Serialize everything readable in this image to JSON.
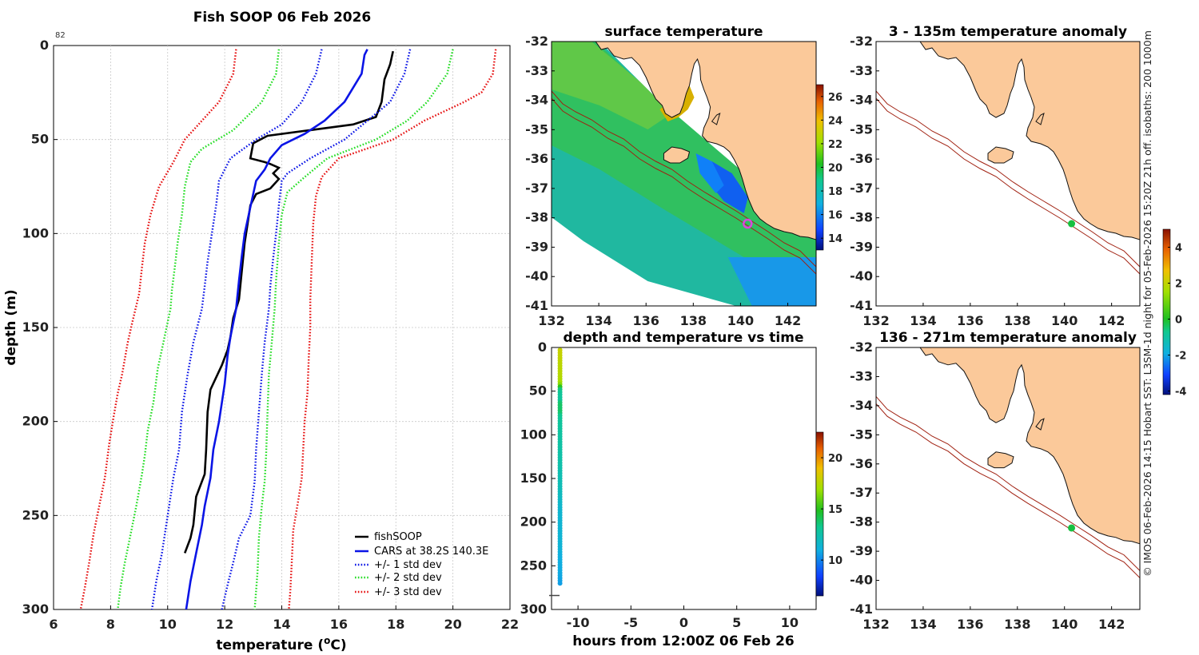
{
  "copyright_note": "© IMOS 06-Feb-2026 14:15 Hobart SST: L3SM-1d night for 05-Feb-2026 15:20Z 21h off. isobaths: 200  1000m",
  "colors": {
    "black": "#000000",
    "blue": "#0a14e6",
    "green": "#22dd22",
    "red": "#e61010",
    "land": "#fbc99a",
    "isobath": "#a02010",
    "station": "#18c040",
    "marker": "#dd44dd"
  },
  "chart_data": [
    {
      "id": "profile",
      "type": "line",
      "title": "Fish SOOP 06 Feb 2026",
      "xlabel": "temperature (°C)",
      "ylabel": "depth (m)",
      "xlim": [
        6,
        22
      ],
      "ylim": [
        0,
        300
      ],
      "x_ticks": [
        "6",
        "8",
        "10",
        "12",
        "14",
        "16",
        "18",
        "20",
        "22"
      ],
      "y_ticks": [
        "0",
        "50",
        "100",
        "150",
        "200",
        "250",
        "300"
      ],
      "corner_label": "82",
      "grid": true,
      "legend_position": "bottom-right",
      "series": [
        {
          "name": "fishSOOP",
          "style": "solid",
          "color_key": "black",
          "points": [
            [
              17.9,
              3
            ],
            [
              17.8,
              10
            ],
            [
              17.6,
              18
            ],
            [
              17.5,
              30
            ],
            [
              17.3,
              38
            ],
            [
              16.5,
              42
            ],
            [
              15.0,
              45
            ],
            [
              13.5,
              48
            ],
            [
              13.0,
              52
            ],
            [
              12.95,
              56
            ],
            [
              12.9,
              60
            ],
            [
              13.4,
              62
            ],
            [
              13.6,
              63
            ],
            [
              13.9,
              65
            ],
            [
              13.7,
              68
            ],
            [
              13.9,
              71
            ],
            [
              13.6,
              76
            ],
            [
              13.1,
              79
            ],
            [
              12.9,
              85
            ],
            [
              12.8,
              95
            ],
            [
              12.7,
              105
            ],
            [
              12.6,
              120
            ],
            [
              12.5,
              135
            ],
            [
              12.3,
              145
            ],
            [
              12.2,
              155
            ],
            [
              12.1,
              162
            ],
            [
              11.9,
              170
            ],
            [
              11.5,
              183
            ],
            [
              11.4,
              195
            ],
            [
              11.35,
              215
            ],
            [
              11.3,
              228
            ],
            [
              11.0,
              240
            ],
            [
              10.9,
              255
            ],
            [
              10.8,
              262
            ],
            [
              10.6,
              270
            ]
          ]
        },
        {
          "name": "CARS at 38.2S 140.3E",
          "style": "solid",
          "color_key": "blue",
          "points": [
            [
              17.0,
              2
            ],
            [
              16.9,
              5
            ],
            [
              16.8,
              15
            ],
            [
              16.2,
              30
            ],
            [
              15.5,
              40
            ],
            [
              14.8,
              47
            ],
            [
              14.0,
              53
            ],
            [
              13.6,
              60
            ],
            [
              13.4,
              66
            ],
            [
              13.1,
              72
            ],
            [
              12.9,
              86
            ],
            [
              12.7,
              100
            ],
            [
              12.6,
              112
            ],
            [
              12.5,
              125
            ],
            [
              12.4,
              140
            ],
            [
              12.2,
              155
            ],
            [
              12.1,
              165
            ],
            [
              12.0,
              180
            ],
            [
              11.8,
              200
            ],
            [
              11.6,
              215
            ],
            [
              11.5,
              230
            ],
            [
              11.3,
              245
            ],
            [
              11.2,
              255
            ],
            [
              11.0,
              270
            ],
            [
              10.8,
              285
            ],
            [
              10.65,
              300
            ]
          ]
        },
        {
          "name": "+/- 1 std dev",
          "style": "dotted",
          "color_key": "blue",
          "points": [
            [
              15.4,
              2
            ],
            [
              15.2,
              15
            ],
            [
              14.7,
              30
            ],
            [
              14.0,
              42
            ],
            [
              13.1,
              50
            ],
            [
              12.2,
              60
            ],
            [
              11.8,
              72
            ],
            [
              11.7,
              85
            ],
            [
              11.55,
              100
            ],
            [
              11.4,
              115
            ],
            [
              11.3,
              128
            ],
            [
              11.2,
              140
            ],
            [
              10.9,
              158
            ],
            [
              10.7,
              175
            ],
            [
              10.5,
              195
            ],
            [
              10.4,
              215
            ],
            [
              10.2,
              230
            ],
            [
              10.0,
              250
            ],
            [
              9.8,
              270
            ],
            [
              9.6,
              285
            ],
            [
              9.45,
              300
            ]
          ]
        },
        {
          "name": "",
          "style": "dotted",
          "color_key": "blue",
          "points": [
            [
              18.5,
              2
            ],
            [
              18.3,
              15
            ],
            [
              17.8,
              30
            ],
            [
              17.0,
              40
            ],
            [
              16.2,
              50
            ],
            [
              15.0,
              60
            ],
            [
              14.2,
              68
            ],
            [
              14.0,
              72
            ],
            [
              13.9,
              85
            ],
            [
              13.8,
              100
            ],
            [
              13.7,
              113
            ],
            [
              13.6,
              128
            ],
            [
              13.55,
              140
            ],
            [
              13.4,
              158
            ],
            [
              13.3,
              175
            ],
            [
              13.2,
              195
            ],
            [
              13.1,
              215
            ],
            [
              13.05,
              232
            ],
            [
              12.9,
              250
            ],
            [
              12.5,
              262
            ],
            [
              12.3,
              275
            ],
            [
              12.1,
              287
            ],
            [
              11.9,
              300
            ]
          ]
        },
        {
          "name": "+/- 2 std dev",
          "style": "dotted",
          "color_key": "green",
          "points": [
            [
              13.9,
              2
            ],
            [
              13.8,
              15
            ],
            [
              13.3,
              30
            ],
            [
              12.3,
              45
            ],
            [
              11.2,
              55
            ],
            [
              10.8,
              62
            ],
            [
              10.6,
              75
            ],
            [
              10.5,
              90
            ],
            [
              10.35,
              105
            ],
            [
              10.25,
              118
            ],
            [
              10.15,
              130
            ],
            [
              10.1,
              140
            ],
            [
              9.85,
              158
            ],
            [
              9.65,
              172
            ],
            [
              9.5,
              190
            ],
            [
              9.3,
              205
            ],
            [
              9.2,
              218
            ],
            [
              9.1,
              228
            ],
            [
              8.9,
              245
            ],
            [
              8.7,
              260
            ],
            [
              8.5,
              275
            ],
            [
              8.35,
              288
            ],
            [
              8.25,
              300
            ]
          ]
        },
        {
          "name": "",
          "style": "dotted",
          "color_key": "green",
          "points": [
            [
              20.0,
              2
            ],
            [
              19.8,
              15
            ],
            [
              19.1,
              30
            ],
            [
              18.4,
              40
            ],
            [
              17.3,
              50
            ],
            [
              15.6,
              60
            ],
            [
              14.8,
              70
            ],
            [
              14.2,
              78
            ],
            [
              14.0,
              90
            ],
            [
              13.9,
              105
            ],
            [
              13.8,
              125
            ],
            [
              13.75,
              140
            ],
            [
              13.65,
              158
            ],
            [
              13.55,
              175
            ],
            [
              13.5,
              195
            ],
            [
              13.45,
              218
            ],
            [
              13.4,
              232
            ],
            [
              13.3,
              245
            ],
            [
              13.2,
              262
            ],
            [
              13.15,
              280
            ],
            [
              13.05,
              300
            ]
          ]
        },
        {
          "name": "+/- 3 std dev",
          "style": "dotted",
          "color_key": "red",
          "points": [
            [
              12.4,
              2
            ],
            [
              12.3,
              15
            ],
            [
              11.8,
              30
            ],
            [
              10.6,
              50
            ],
            [
              10.2,
              62
            ],
            [
              9.7,
              75
            ],
            [
              9.4,
              90
            ],
            [
              9.2,
              105
            ],
            [
              9.1,
              118
            ],
            [
              9.0,
              132
            ],
            [
              8.75,
              148
            ],
            [
              8.6,
              158
            ],
            [
              8.4,
              175
            ],
            [
              8.25,
              185
            ],
            [
              8.1,
              198
            ],
            [
              7.95,
              212
            ],
            [
              7.8,
              230
            ],
            [
              7.6,
              245
            ],
            [
              7.4,
              260
            ],
            [
              7.25,
              275
            ],
            [
              7.1,
              288
            ],
            [
              6.95,
              300
            ]
          ]
        },
        {
          "name": "",
          "style": "dotted",
          "color_key": "red",
          "points": [
            [
              21.5,
              2
            ],
            [
              21.4,
              15
            ],
            [
              21.0,
              25
            ],
            [
              20.4,
              30
            ],
            [
              19.0,
              40
            ],
            [
              17.9,
              50
            ],
            [
              16.0,
              60
            ],
            [
              15.4,
              70
            ],
            [
              15.2,
              80
            ],
            [
              15.1,
              95
            ],
            [
              15.05,
              115
            ],
            [
              15.0,
              135
            ],
            [
              15.0,
              150
            ],
            [
              14.95,
              165
            ],
            [
              14.9,
              185
            ],
            [
              14.8,
              200
            ],
            [
              14.75,
              215
            ],
            [
              14.7,
              230
            ],
            [
              14.6,
              240
            ],
            [
              14.4,
              258
            ],
            [
              14.35,
              275
            ],
            [
              14.3,
              290
            ],
            [
              14.25,
              300
            ]
          ]
        }
      ]
    },
    {
      "id": "sst",
      "type": "heatmap",
      "title": "surface temperature",
      "xlim": [
        132,
        143.2
      ],
      "ylim": [
        -41,
        -32
      ],
      "x_ticks": [
        "132",
        "134",
        "136",
        "138",
        "140",
        "142"
      ],
      "y_ticks": [
        "-32",
        "-33",
        "-34",
        "-35",
        "-36",
        "-37",
        "-38",
        "-39",
        "-40",
        "-41"
      ],
      "colorbar_range": [
        13,
        27
      ],
      "colorbar_ticks": [
        "14",
        "16",
        "18",
        "20",
        "22",
        "24",
        "26"
      ],
      "station": [
        140.3,
        -38.2
      ]
    },
    {
      "id": "anom_shallow",
      "type": "heatmap",
      "title": "3 - 135m temperature anomaly",
      "xlim": [
        132,
        143.2
      ],
      "ylim": [
        -41,
        -32
      ],
      "x_ticks": [
        "132",
        "134",
        "136",
        "138",
        "140",
        "142"
      ],
      "y_ticks": [
        "-32",
        "-33",
        "-34",
        "-35",
        "-36",
        "-37",
        "-38",
        "-39",
        "-40",
        "-41"
      ],
      "station": [
        140.3,
        -38.2
      ]
    },
    {
      "id": "anom_deep",
      "type": "heatmap",
      "title": "136 - 271m temperature anomaly",
      "xlim": [
        132,
        143.2
      ],
      "ylim": [
        -41,
        -32
      ],
      "x_ticks": [
        "132",
        "134",
        "136",
        "138",
        "140",
        "142"
      ],
      "y_ticks": [
        "-32",
        "-33",
        "-34",
        "-35",
        "-36",
        "-37",
        "-38",
        "-39",
        "-40",
        "-41"
      ],
      "station": [
        140.3,
        -38.2
      ]
    },
    {
      "id": "anomaly_colorbar",
      "type": "heatmap",
      "colorbar_range": [
        -4.2,
        5.0
      ],
      "colorbar_ticks": [
        "-4",
        "-2",
        "0",
        "2",
        "4"
      ]
    },
    {
      "id": "depth_time",
      "type": "scatter",
      "title": "depth and temperature vs time",
      "xlabel": "hours from 12:00Z 06 Feb 26",
      "xlim": [
        -12.5,
        12.5
      ],
      "ylim": [
        0,
        300
      ],
      "x_ticks": [
        "-10",
        "-5",
        "0",
        "5",
        "10"
      ],
      "y_ticks": [
        "0",
        "50",
        "100",
        "150",
        "200",
        "250",
        "300"
      ],
      "colorbar_range": [
        6.5,
        22.5
      ],
      "colorbar_ticks": [
        "10",
        "15",
        "20"
      ],
      "time": -11.7,
      "depth_start": 3,
      "depth_end": 270,
      "depth_step": 3,
      "bottom_marker_depth": 284
    }
  ]
}
